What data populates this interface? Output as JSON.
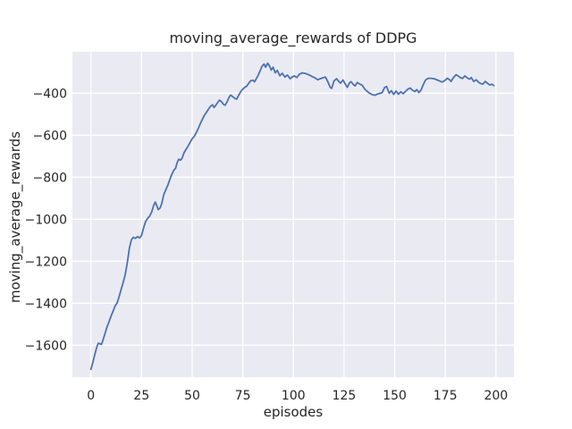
{
  "chart_data": {
    "type": "line",
    "title": "moving_average_rewards of DDPG",
    "xlabel": "episodes",
    "ylabel": "moving_average_rewards",
    "x_ticks": [
      0,
      25,
      50,
      75,
      100,
      125,
      150,
      175,
      200
    ],
    "y_ticks": [
      -400,
      -600,
      -800,
      -1000,
      -1200,
      -1400,
      -1600
    ],
    "xlim": [
      -9.13,
      208.87
    ],
    "ylim": [
      -1751.9,
      -203.0
    ],
    "grid": true,
    "legend": "none",
    "styles": {
      "line_color": "#4C72B0",
      "line_width": 1.8,
      "plot_background": "#EAEAF2",
      "grid_color": "#FFFFFF",
      "text_color": "#262626",
      "figure_background": "#FFFFFF"
    },
    "series": [
      {
        "name": "moving_average_rewards",
        "points": [
          [
            0,
            -1715
          ],
          [
            1,
            -1680
          ],
          [
            2,
            -1642
          ],
          [
            3,
            -1606
          ],
          [
            3.7,
            -1590
          ],
          [
            4.5,
            -1593
          ],
          [
            5.2,
            -1596
          ],
          [
            6,
            -1575
          ],
          [
            7,
            -1543
          ],
          [
            8,
            -1512
          ],
          [
            9,
            -1487
          ],
          [
            10,
            -1461
          ],
          [
            11,
            -1437
          ],
          [
            12,
            -1412
          ],
          [
            13,
            -1398
          ],
          [
            14,
            -1367
          ],
          [
            15,
            -1332
          ],
          [
            16,
            -1300
          ],
          [
            17,
            -1262
          ],
          [
            18,
            -1205
          ],
          [
            19,
            -1140
          ],
          [
            20,
            -1098
          ],
          [
            21,
            -1086
          ],
          [
            22,
            -1091
          ],
          [
            23,
            -1083
          ],
          [
            24,
            -1089
          ],
          [
            25,
            -1078
          ],
          [
            26,
            -1042
          ],
          [
            27,
            -1011
          ],
          [
            28,
            -996
          ],
          [
            29,
            -985
          ],
          [
            30,
            -966
          ],
          [
            31,
            -935
          ],
          [
            31.8,
            -918
          ],
          [
            32.5,
            -935
          ],
          [
            33.3,
            -954
          ],
          [
            34.2,
            -946
          ],
          [
            35,
            -925
          ],
          [
            36,
            -882
          ],
          [
            37,
            -860
          ],
          [
            38,
            -838
          ],
          [
            39,
            -810
          ],
          [
            40,
            -786
          ],
          [
            41,
            -766
          ],
          [
            41.8,
            -758
          ],
          [
            42.6,
            -731
          ],
          [
            43.4,
            -714
          ],
          [
            44.2,
            -719
          ],
          [
            45,
            -710
          ],
          [
            46,
            -684
          ],
          [
            47,
            -667
          ],
          [
            48,
            -652
          ],
          [
            49,
            -634
          ],
          [
            50,
            -617
          ],
          [
            51,
            -606
          ],
          [
            52,
            -589
          ],
          [
            53,
            -568
          ],
          [
            54,
            -545
          ],
          [
            55,
            -525
          ],
          [
            56,
            -506
          ],
          [
            57,
            -492
          ],
          [
            58,
            -477
          ],
          [
            59,
            -463
          ],
          [
            60,
            -455
          ],
          [
            60.8,
            -468
          ],
          [
            61.6,
            -458
          ],
          [
            62.5,
            -446
          ],
          [
            63.5,
            -433
          ],
          [
            64.5,
            -440
          ],
          [
            65.5,
            -453
          ],
          [
            66.3,
            -457
          ],
          [
            67.2,
            -442
          ],
          [
            68.2,
            -420
          ],
          [
            69,
            -409
          ],
          [
            70,
            -416
          ],
          [
            71,
            -424
          ],
          [
            72,
            -428
          ],
          [
            73,
            -410
          ],
          [
            74,
            -392
          ],
          [
            75,
            -381
          ],
          [
            76,
            -372
          ],
          [
            77,
            -366
          ],
          [
            78,
            -352
          ],
          [
            79,
            -340
          ],
          [
            80,
            -338
          ],
          [
            80.8,
            -346
          ],
          [
            81.6,
            -332
          ],
          [
            82.5,
            -317
          ],
          [
            83.5,
            -295
          ],
          [
            84.5,
            -272
          ],
          [
            85.5,
            -261
          ],
          [
            86.3,
            -276
          ],
          [
            87.3,
            -257
          ],
          [
            88.3,
            -272
          ],
          [
            89,
            -290
          ],
          [
            90,
            -276
          ],
          [
            91,
            -303
          ],
          [
            92,
            -291
          ],
          [
            93.3,
            -317
          ],
          [
            94.5,
            -305
          ],
          [
            95.8,
            -323
          ],
          [
            97,
            -313
          ],
          [
            98.4,
            -331
          ],
          [
            99.5,
            -322
          ],
          [
            100.5,
            -318
          ],
          [
            101.7,
            -325
          ],
          [
            103,
            -309
          ],
          [
            104.5,
            -303
          ],
          [
            106,
            -306
          ],
          [
            107.5,
            -312
          ],
          [
            109,
            -319
          ],
          [
            110.5,
            -326
          ],
          [
            112,
            -336
          ],
          [
            113.2,
            -331
          ],
          [
            114.5,
            -327
          ],
          [
            115.8,
            -323
          ],
          [
            117,
            -345
          ],
          [
            118.2,
            -372
          ],
          [
            118.9,
            -377
          ],
          [
            120,
            -342
          ],
          [
            121.3,
            -331
          ],
          [
            122.5,
            -345
          ],
          [
            123.3,
            -352
          ],
          [
            124.5,
            -337
          ],
          [
            125.7,
            -358
          ],
          [
            126.6,
            -372
          ],
          [
            127.6,
            -352
          ],
          [
            128.5,
            -345
          ],
          [
            129.5,
            -358
          ],
          [
            130.5,
            -365
          ],
          [
            131.5,
            -349
          ],
          [
            132.7,
            -356
          ],
          [
            134,
            -362
          ],
          [
            135.2,
            -380
          ],
          [
            136.5,
            -392
          ],
          [
            137.6,
            -400
          ],
          [
            139,
            -407
          ],
          [
            140.3,
            -410
          ],
          [
            141.5,
            -404
          ],
          [
            142.6,
            -401
          ],
          [
            143.8,
            -398
          ],
          [
            145,
            -373
          ],
          [
            146,
            -368
          ],
          [
            147.3,
            -400
          ],
          [
            148.4,
            -388
          ],
          [
            149.5,
            -406
          ],
          [
            150.7,
            -390
          ],
          [
            151.8,
            -405
          ],
          [
            153,
            -393
          ],
          [
            154.2,
            -402
          ],
          [
            155.5,
            -390
          ],
          [
            156.5,
            -381
          ],
          [
            157.7,
            -375
          ],
          [
            158.8,
            -386
          ],
          [
            160,
            -392
          ],
          [
            160.9,
            -383
          ],
          [
            162,
            -397
          ],
          [
            163,
            -385
          ],
          [
            164,
            -362
          ],
          [
            165.2,
            -338
          ],
          [
            166.5,
            -329
          ],
          [
            168,
            -329
          ],
          [
            169.5,
            -331
          ],
          [
            171,
            -337
          ],
          [
            172.3,
            -342
          ],
          [
            173.5,
            -347
          ],
          [
            174.7,
            -340
          ],
          [
            176,
            -329
          ],
          [
            177,
            -335
          ],
          [
            177.8,
            -344
          ],
          [
            179,
            -326
          ],
          [
            180.3,
            -312
          ],
          [
            181.5,
            -319
          ],
          [
            182.5,
            -326
          ],
          [
            183.5,
            -330
          ],
          [
            184.6,
            -318
          ],
          [
            185.8,
            -327
          ],
          [
            187,
            -333
          ],
          [
            187.8,
            -325
          ],
          [
            189,
            -344
          ],
          [
            190.3,
            -336
          ],
          [
            191.5,
            -348
          ],
          [
            192.5,
            -354
          ],
          [
            193.5,
            -357
          ],
          [
            194.7,
            -344
          ],
          [
            196,
            -354
          ],
          [
            197,
            -361
          ],
          [
            198,
            -357
          ],
          [
            199,
            -364
          ]
        ]
      }
    ]
  }
}
